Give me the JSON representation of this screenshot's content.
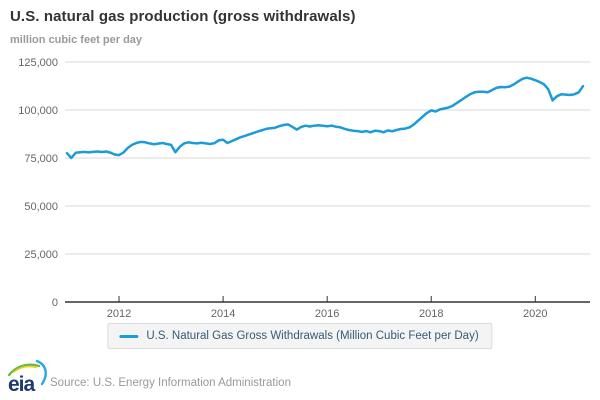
{
  "header": {
    "title": "U.S. natural gas production (gross withdrawals)",
    "subtitle": "million cubic feet per day"
  },
  "legend": {
    "label": "U.S. Natural Gas Gross Withdrawals (Million Cubic Feet per Day)"
  },
  "footer": {
    "logo_text": "eia",
    "source": "Source: U.S. Energy Information Administration"
  },
  "colors": {
    "line": "#1d9bd8",
    "grid": "#d8d8d8",
    "axis": "#333333",
    "tick_label": "#666666",
    "title_text": "#333333",
    "subtitle_text": "#9a9a9a",
    "legend_bg": "#f4f4f4",
    "legend_border": "#dcdcdc",
    "legend_text": "#335c75",
    "source_text": "#999999",
    "logo_navy": "#1c3a6c",
    "logo_green": "#6cba3f",
    "logo_yellow": "#efd31f",
    "logo_blue": "#2aa9e0"
  },
  "chart_data": {
    "type": "line",
    "title": "U.S. natural gas production (gross withdrawals)",
    "ylabel": "million cubic feet per day",
    "xlabel": "",
    "grid": "horizontal",
    "legend_position": "bottom",
    "ylim": [
      0,
      125000
    ],
    "x_start_year": 2011,
    "points_per_year": 12,
    "y_ticks": {
      "values": [
        0,
        25000,
        50000,
        75000,
        100000,
        125000
      ],
      "labels": [
        "0",
        "25,000",
        "50,000",
        "75,000",
        "100,000",
        "125,000"
      ]
    },
    "x_ticks": {
      "years": [
        2012,
        2014,
        2016,
        2018,
        2020
      ],
      "labels": [
        "2012",
        "2014",
        "2016",
        "2018",
        "2020"
      ]
    },
    "series": [
      {
        "name": "U.S. Natural Gas Gross Withdrawals (Million Cubic Feet per Day)",
        "color": "#1d9bd8",
        "x_range": "Jan 2011 - Dec 2020 (monthly)",
        "values": [
          77500,
          75000,
          77700,
          78000,
          78200,
          77900,
          78200,
          78400,
          78100,
          78400,
          77800,
          76800,
          76500,
          77800,
          80200,
          81800,
          82800,
          83400,
          83200,
          82600,
          82200,
          82500,
          82800,
          82300,
          81800,
          78000,
          80800,
          82600,
          83200,
          82800,
          82600,
          82900,
          82600,
          82300,
          82700,
          84200,
          84500,
          82800,
          83800,
          84800,
          85800,
          86500,
          87300,
          88000,
          88800,
          89500,
          90200,
          90500,
          90800,
          91600,
          92200,
          92500,
          91200,
          89800,
          91200,
          91800,
          91400,
          91800,
          92100,
          91800,
          91500,
          91900,
          91300,
          91000,
          90200,
          89600,
          89200,
          89000,
          88600,
          89000,
          88400,
          89200,
          89000,
          88400,
          89400,
          88900,
          89600,
          90100,
          90300,
          91000,
          92500,
          94500,
          96500,
          98500,
          99800,
          99200,
          100300,
          100800,
          101300,
          102300,
          103800,
          105300,
          106800,
          108300,
          109200,
          109500,
          109500,
          109200,
          110300,
          111500,
          112000,
          111800,
          112200,
          113300,
          114800,
          116200,
          116800,
          116300,
          115500,
          114600,
          113400,
          110800,
          105000,
          107200,
          108200,
          108000,
          107800,
          108200,
          109200,
          112400
        ]
      }
    ]
  }
}
